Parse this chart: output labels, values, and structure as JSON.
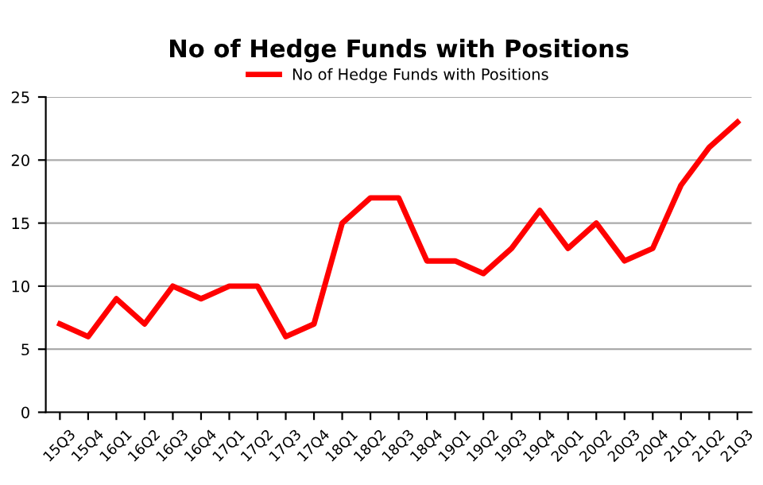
{
  "chart_data": {
    "type": "line",
    "title": "No of Hedge Funds with Positions",
    "categories": [
      "15Q3",
      "15Q4",
      "16Q1",
      "16Q2",
      "16Q3",
      "16Q4",
      "17Q1",
      "17Q2",
      "17Q3",
      "17Q4",
      "18Q1",
      "18Q2",
      "18Q3",
      "18Q4",
      "19Q1",
      "19Q2",
      "19Q3",
      "19Q4",
      "20Q1",
      "20Q2",
      "20Q3",
      "20Q4",
      "21Q1",
      "21Q2",
      "21Q3"
    ],
    "series": [
      {
        "name": "No of Hedge Funds with Positions",
        "color": "#ff0000",
        "values": [
          7,
          6,
          9,
          7,
          10,
          9,
          10,
          10,
          6,
          7,
          15,
          17,
          17,
          12,
          12,
          11,
          13,
          16,
          13,
          15,
          12,
          13,
          18,
          21,
          23
        ]
      }
    ],
    "ylim": [
      0,
      25
    ],
    "yticks": [
      0,
      5,
      10,
      15,
      20,
      25
    ],
    "grid": "y",
    "legend": "top",
    "marker": "none",
    "line_style": "solid"
  }
}
